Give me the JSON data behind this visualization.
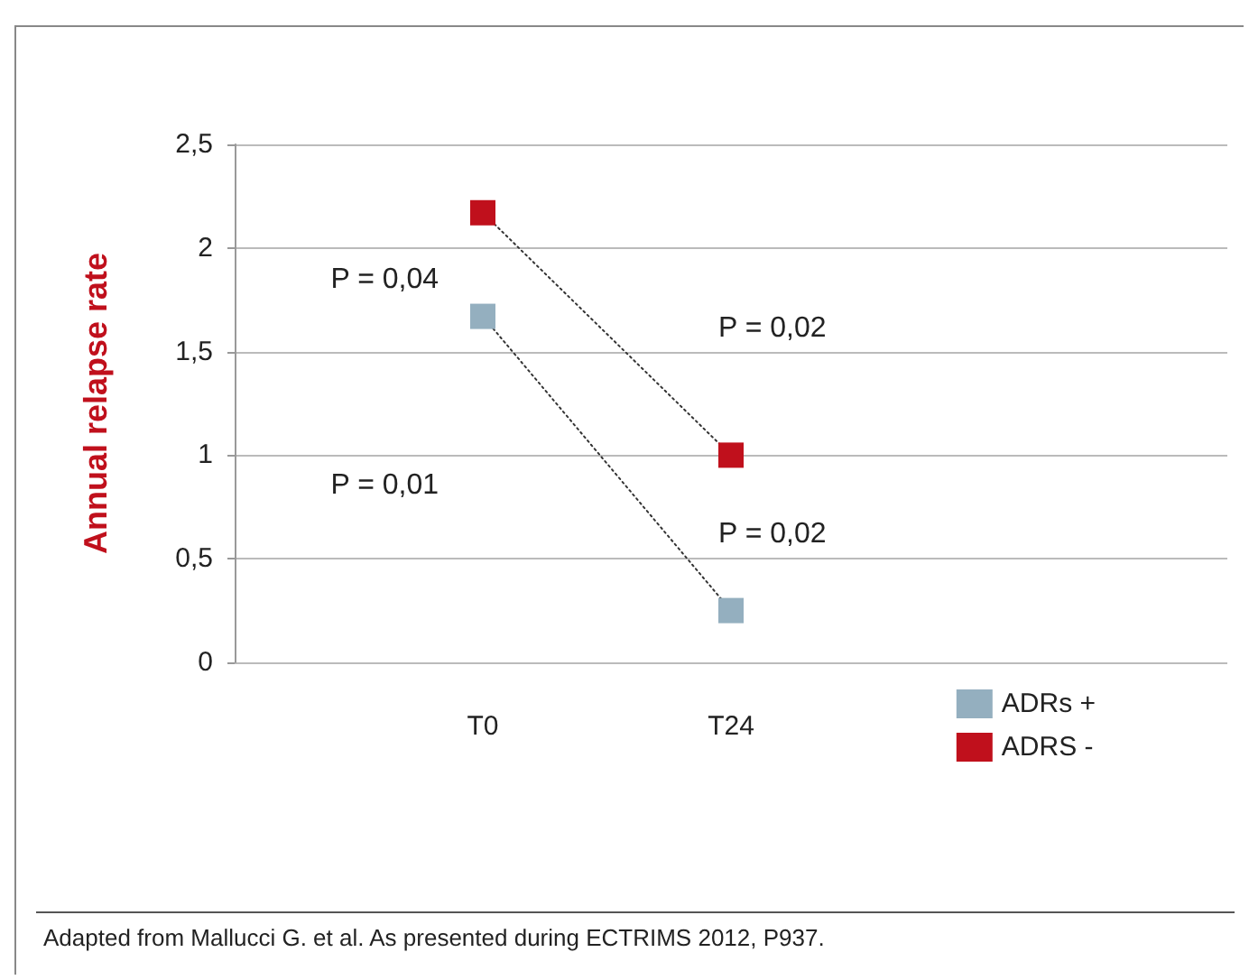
{
  "chart_data": {
    "type": "line",
    "ylabel": "Annual relapse rate",
    "categories": [
      null,
      "T0",
      "T24",
      null,
      null
    ],
    "series": [
      {
        "name": "ADRs +",
        "color": "#94afbf",
        "values": [
          null,
          1.67,
          0.25,
          null,
          null
        ]
      },
      {
        "name": "ADRS -",
        "color": "#c0101c",
        "values": [
          null,
          2.17,
          1.0,
          null,
          null
        ]
      }
    ],
    "ylim": [
      0,
      2.5
    ],
    "yticks": [
      {
        "value": 0,
        "label": "0"
      },
      {
        "value": 0.5,
        "label": "0,5"
      },
      {
        "value": 1,
        "label": "1"
      },
      {
        "value": 1.5,
        "label": "1,5"
      },
      {
        "value": 2,
        "label": "2"
      },
      {
        "value": 2.5,
        "label": "2,5"
      }
    ],
    "grid": "y",
    "legend": "bottom right",
    "marker": "square",
    "line_style": "dotted",
    "annotations": [
      "P = 0,04",
      "P = 0,01",
      "P = 0,02",
      "P = 0,02",
      "Adapted from Mallucci G. et al. As presented during ECTRIMS 2012, P937."
    ]
  }
}
